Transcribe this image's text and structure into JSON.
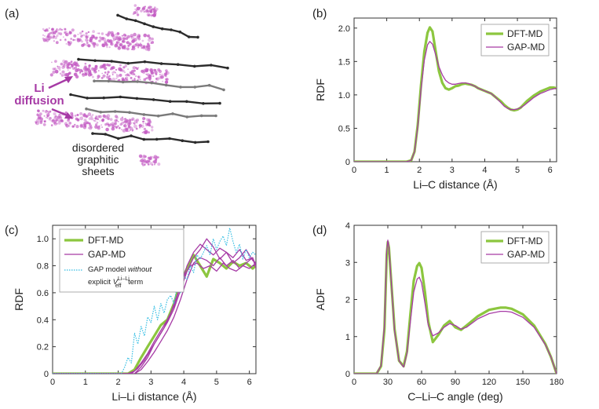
{
  "colors": {
    "dft": "#8cc63f",
    "gap": "#a63aa5",
    "gap_no_vli": "#33bde3",
    "sheet_dark": "#2b2b2b",
    "sheet_light": "#7a7a7a",
    "li_cloud": "#c35bc3"
  },
  "panels": {
    "a": {
      "letter": "(a)",
      "annotation_li_line1": "Li",
      "annotation_li_line2": "diffusion",
      "annotation_sheets_line1": "disordered",
      "annotation_sheets_line2": "graphitic",
      "annotation_sheets_line3": "sheets"
    },
    "b": {
      "letter": "(b)"
    },
    "c": {
      "letter": "(c)"
    },
    "d": {
      "letter": "(d)"
    }
  },
  "chart_data": [
    {
      "id": "b",
      "type": "line",
      "xlabel": "Li–C distance (Å)",
      "ylabel": "RDF",
      "xlim": [
        0,
        6.2
      ],
      "ylim": [
        0,
        2.15
      ],
      "xticks": [
        0,
        1,
        2,
        3,
        4,
        5,
        6
      ],
      "yticks": [
        0,
        0.5,
        1.0,
        1.5,
        2.0
      ],
      "ytick_labels": [
        "0",
        "0.5",
        "1.0",
        "1.5",
        "2.0"
      ],
      "legend": [
        "DFT-MD",
        "GAP-MD"
      ],
      "legend_position": "top-right",
      "series": [
        {
          "name": "DFT-MD",
          "x": [
            0,
            1.6,
            1.75,
            1.85,
            1.95,
            2.05,
            2.15,
            2.25,
            2.32,
            2.4,
            2.5,
            2.6,
            2.7,
            2.8,
            2.9,
            3.0,
            3.1,
            3.2,
            3.3,
            3.4,
            3.5,
            3.6,
            3.7,
            3.8,
            3.9,
            4.0,
            4.1,
            4.2,
            4.3,
            4.4,
            4.5,
            4.6,
            4.7,
            4.8,
            4.9,
            5.0,
            5.1,
            5.2,
            5.3,
            5.4,
            5.5,
            5.6,
            5.7,
            5.8,
            5.9,
            6.0,
            6.1,
            6.2
          ],
          "values": [
            0,
            0,
            0.02,
            0.15,
            0.55,
            1.15,
            1.65,
            1.93,
            2.01,
            1.95,
            1.65,
            1.35,
            1.18,
            1.1,
            1.08,
            1.1,
            1.13,
            1.14,
            1.16,
            1.17,
            1.16,
            1.15,
            1.13,
            1.1,
            1.08,
            1.06,
            1.04,
            1.02,
            0.98,
            0.94,
            0.9,
            0.85,
            0.81,
            0.78,
            0.77,
            0.78,
            0.81,
            0.86,
            0.91,
            0.95,
            0.99,
            1.02,
            1.05,
            1.07,
            1.09,
            1.11,
            1.11,
            1.1
          ]
        },
        {
          "name": "GAP-MD",
          "x": [
            0,
            1.6,
            1.75,
            1.85,
            1.95,
            2.05,
            2.15,
            2.25,
            2.32,
            2.4,
            2.5,
            2.6,
            2.7,
            2.8,
            2.9,
            3.0,
            3.1,
            3.2,
            3.3,
            3.4,
            3.5,
            3.6,
            3.7,
            3.8,
            3.9,
            4.0,
            4.1,
            4.2,
            4.3,
            4.4,
            4.5,
            4.6,
            4.7,
            4.8,
            4.9,
            5.0,
            5.1,
            5.2,
            5.3,
            5.4,
            5.5,
            5.6,
            5.7,
            5.8,
            5.9,
            6.0,
            6.1,
            6.2
          ],
          "values": [
            0,
            0,
            0.02,
            0.15,
            0.52,
            1.08,
            1.52,
            1.75,
            1.8,
            1.76,
            1.6,
            1.42,
            1.3,
            1.22,
            1.18,
            1.16,
            1.16,
            1.17,
            1.18,
            1.18,
            1.17,
            1.15,
            1.13,
            1.1,
            1.08,
            1.06,
            1.04,
            1.02,
            0.98,
            0.93,
            0.88,
            0.83,
            0.8,
            0.78,
            0.78,
            0.79,
            0.81,
            0.84,
            0.88,
            0.92,
            0.96,
            0.99,
            1.02,
            1.04,
            1.06,
            1.08,
            1.09,
            1.1
          ]
        }
      ]
    },
    {
      "id": "c",
      "type": "line",
      "xlabel": "Li–Li distance (Å)",
      "ylabel": "RDF",
      "xlim": [
        0,
        6.2
      ],
      "ylim": [
        0,
        1.1
      ],
      "xticks": [
        0,
        1,
        2,
        3,
        4,
        5,
        6
      ],
      "yticks": [
        0,
        0.2,
        0.4,
        0.6,
        0.8,
        1.0
      ],
      "ytick_labels": [
        "0",
        "0.2",
        "0.4",
        "0.6",
        "0.8",
        "1.0"
      ],
      "legend": [
        "DFT-MD",
        "GAP-MD",
        "GAP model without explicit V_eff^Li–Li term"
      ],
      "legend_labels": {
        "gap_no_vli_line1_a": "GAP model ",
        "gap_no_vli_line1_b": "without",
        "gap_no_vli_line2_a": "explicit ",
        "gap_no_vli_line2_V": "V",
        "gap_no_vli_line2_sup": "Li–Li",
        "gap_no_vli_line2_sub": "eff",
        "gap_no_vli_line2_b": " term"
      },
      "legend_position": "top-left",
      "series": [
        {
          "name": "DFT-MD",
          "x": [
            0,
            2.3,
            2.5,
            2.7,
            2.9,
            3.1,
            3.3,
            3.5,
            3.7,
            3.9,
            4.1,
            4.3,
            4.5,
            4.7,
            4.9,
            5.1,
            5.3,
            5.5,
            5.7,
            5.9,
            6.1,
            6.2
          ],
          "values": [
            0,
            0,
            0.03,
            0.12,
            0.2,
            0.28,
            0.36,
            0.4,
            0.52,
            0.68,
            0.78,
            0.88,
            0.8,
            0.72,
            0.85,
            0.82,
            0.78,
            0.83,
            0.8,
            0.82,
            0.78,
            0.8
          ]
        },
        {
          "name": "GAP-MD",
          "x": [
            0,
            2.3,
            2.5,
            2.7,
            2.9,
            3.1,
            3.3,
            3.5,
            3.7,
            3.9,
            4.1,
            4.3,
            4.5,
            4.7,
            4.9,
            5.1,
            5.3,
            5.5,
            5.7,
            5.9,
            6.1,
            6.2
          ],
          "values": [
            0,
            0,
            0.02,
            0.08,
            0.15,
            0.24,
            0.32,
            0.4,
            0.5,
            0.65,
            0.8,
            0.9,
            0.96,
            0.92,
            0.88,
            0.93,
            0.9,
            0.86,
            0.92,
            0.84,
            0.86,
            0.8
          ]
        },
        {
          "name": "GAP-MD",
          "x": [
            0,
            2.4,
            2.6,
            2.8,
            3.0,
            3.2,
            3.4,
            3.6,
            3.8,
            4.0,
            4.2,
            4.4,
            4.6,
            4.8,
            5.0,
            5.2,
            5.4,
            5.6,
            5.8,
            6.0,
            6.2
          ],
          "values": [
            0,
            0,
            0.04,
            0.1,
            0.18,
            0.26,
            0.34,
            0.45,
            0.58,
            0.72,
            0.8,
            0.82,
            0.78,
            0.8,
            0.76,
            0.82,
            0.78,
            0.76,
            0.8,
            0.78,
            0.82
          ]
        },
        {
          "name": "GAP-MD",
          "x": [
            0,
            2.5,
            2.7,
            2.9,
            3.1,
            3.3,
            3.5,
            3.7,
            3.9,
            4.1,
            4.3,
            4.5,
            4.7,
            4.9,
            5.1,
            5.3,
            5.5,
            5.7,
            5.9,
            6.1,
            6.2
          ],
          "values": [
            0,
            0,
            0.05,
            0.12,
            0.22,
            0.3,
            0.38,
            0.48,
            0.62,
            0.76,
            0.86,
            0.92,
            1.0,
            0.94,
            0.85,
            0.9,
            0.82,
            0.86,
            0.92,
            0.84,
            0.82
          ]
        },
        {
          "name": "GAP-MD",
          "x": [
            0,
            2.5,
            2.7,
            2.9,
            3.1,
            3.3,
            3.5,
            3.7,
            3.9,
            4.1,
            4.3,
            4.5,
            4.7,
            4.9,
            5.1,
            5.3,
            5.5,
            5.7,
            5.9,
            6.1,
            6.2
          ],
          "values": [
            0,
            0,
            0.03,
            0.09,
            0.16,
            0.24,
            0.32,
            0.42,
            0.55,
            0.7,
            0.82,
            0.86,
            0.84,
            0.8,
            0.86,
            0.8,
            0.84,
            0.78,
            0.82,
            0.86,
            0.78
          ]
        },
        {
          "name": "GAP model without explicit V_eff^Li–Li term",
          "x": [
            0,
            2.1,
            2.2,
            2.3,
            2.4,
            2.5,
            2.6,
            2.7,
            2.8,
            2.9,
            3.0,
            3.1,
            3.2,
            3.3,
            3.4,
            3.5,
            3.6,
            3.7,
            3.8,
            3.9,
            4.0,
            4.1,
            4.2,
            4.3,
            4.4,
            4.5,
            4.6,
            4.7,
            4.8,
            4.9,
            5.0,
            5.1,
            5.2,
            5.3,
            5.4,
            5.5,
            5.6,
            5.7,
            5.8,
            5.9,
            6.0,
            6.1,
            6.2
          ],
          "values": [
            0,
            0,
            0.05,
            0.12,
            0.08,
            0.3,
            0.22,
            0.35,
            0.28,
            0.42,
            0.38,
            0.5,
            0.4,
            0.52,
            0.45,
            0.55,
            0.58,
            0.52,
            0.65,
            0.6,
            0.72,
            0.7,
            0.8,
            0.75,
            0.88,
            0.85,
            0.9,
            0.95,
            0.88,
            1.0,
            0.92,
            0.98,
            1.02,
            0.95,
            1.08,
            0.98,
            0.9,
            0.96,
            0.85,
            0.92,
            0.86,
            0.9,
            0.88
          ]
        }
      ]
    },
    {
      "id": "d",
      "type": "line",
      "xlabel": "C–Li–C angle (deg)",
      "ylabel": "ADF",
      "xlim": [
        0,
        180
      ],
      "ylim": [
        0,
        4
      ],
      "xticks": [
        0,
        30,
        60,
        90,
        120,
        150,
        180
      ],
      "yticks": [
        0,
        1,
        2,
        3,
        4
      ],
      "ytick_labels": [
        "0",
        "1",
        "2",
        "3",
        "4"
      ],
      "legend": [
        "DFT-MD",
        "GAP-MD"
      ],
      "legend_position": "top-right",
      "series": [
        {
          "name": "DFT-MD",
          "x": [
            0,
            20,
            24,
            27,
            29,
            30,
            31,
            33,
            36,
            40,
            44,
            47,
            50,
            53,
            56,
            58,
            60,
            63,
            66,
            70,
            75,
            80,
            85,
            90,
            95,
            100,
            110,
            120,
            130,
            135,
            140,
            150,
            160,
            170,
            175,
            180
          ],
          "values": [
            0,
            0,
            0.2,
            1.2,
            3.2,
            3.55,
            3.4,
            2.5,
            1.2,
            0.35,
            0.2,
            0.6,
            1.6,
            2.5,
            2.9,
            2.98,
            2.85,
            2.2,
            1.4,
            0.85,
            1.05,
            1.3,
            1.42,
            1.25,
            1.18,
            1.3,
            1.55,
            1.72,
            1.78,
            1.78,
            1.75,
            1.6,
            1.3,
            0.8,
            0.45,
            0
          ]
        },
        {
          "name": "GAP-MD",
          "x": [
            0,
            20,
            24,
            27,
            29,
            30,
            31,
            33,
            36,
            40,
            44,
            47,
            50,
            53,
            56,
            58,
            60,
            63,
            66,
            70,
            75,
            80,
            85,
            90,
            95,
            100,
            110,
            120,
            130,
            135,
            140,
            150,
            160,
            170,
            175,
            180
          ],
          "values": [
            0,
            0,
            0.22,
            1.3,
            3.3,
            3.6,
            3.42,
            2.5,
            1.15,
            0.35,
            0.18,
            0.55,
            1.4,
            2.2,
            2.55,
            2.6,
            2.45,
            1.9,
            1.3,
            1.02,
            1.1,
            1.25,
            1.35,
            1.3,
            1.2,
            1.25,
            1.48,
            1.62,
            1.68,
            1.68,
            1.66,
            1.52,
            1.25,
            0.78,
            0.45,
            0
          ]
        }
      ]
    }
  ]
}
